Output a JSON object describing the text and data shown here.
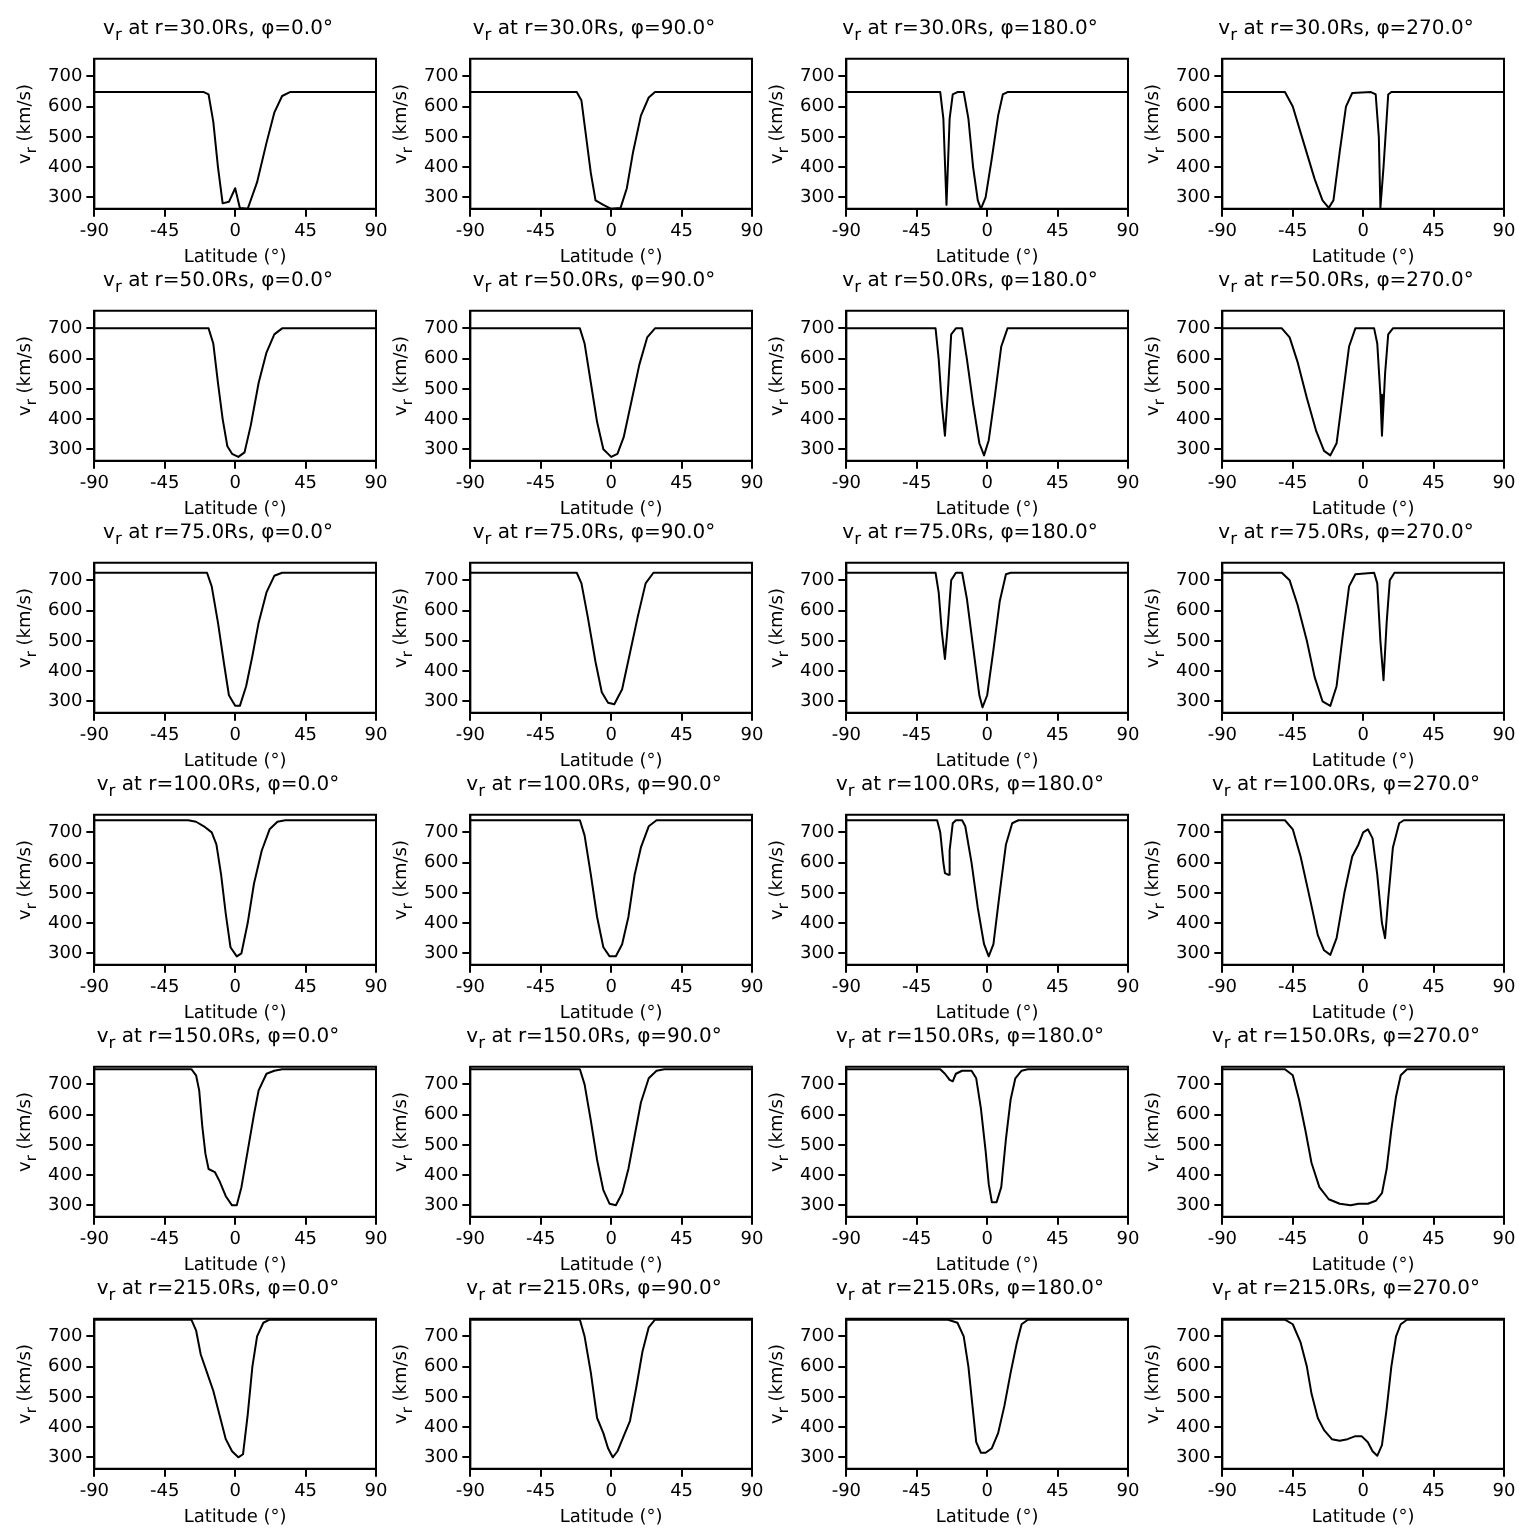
{
  "chart_data": [
    {
      "type": "line",
      "title": "v$_{r}$ at r=30.0Rs, φ=0.0°",
      "xlabel": "Latitude (°)",
      "ylabel": "v$_{r}$ (km/s)",
      "color": "#000000",
      "xlim": [
        -90,
        90
      ],
      "xticks": [
        -90,
        -45,
        0,
        45,
        90
      ],
      "ylim": [
        262,
        758
      ],
      "yticks": [
        300,
        400,
        500,
        600,
        700
      ],
      "x": [
        -90,
        -20,
        -17,
        -14,
        -11,
        -8,
        -4,
        0,
        3,
        8,
        14,
        20,
        25,
        30,
        35,
        90
      ],
      "values": [
        648,
        648,
        640,
        550,
        400,
        280,
        285,
        330,
        265,
        262,
        350,
        480,
        580,
        635,
        648,
        648
      ]
    },
    {
      "type": "line",
      "title": "v$_{r}$ at r=30.0Rs, φ=90.0°",
      "xlabel": "Latitude (°)",
      "ylabel": "v$_{r}$ (km/s)",
      "color": "#000000",
      "xlim": [
        -90,
        90
      ],
      "xticks": [
        -90,
        -45,
        0,
        45,
        90
      ],
      "ylim": [
        262,
        758
      ],
      "yticks": [
        300,
        400,
        500,
        600,
        700
      ],
      "x": [
        -90,
        -22,
        -19,
        -16,
        -13,
        -10,
        -5,
        0,
        6,
        10,
        14,
        19,
        24,
        28,
        90
      ],
      "values": [
        648,
        648,
        620,
        500,
        380,
        290,
        275,
        262,
        265,
        330,
        450,
        570,
        630,
        648,
        648
      ]
    },
    {
      "type": "line",
      "title": "v$_{r}$ at r=30.0Rs, φ=180.0°",
      "xlabel": "Latitude (°)",
      "ylabel": "v$_{r}$ (km/s)",
      "color": "#000000",
      "xlim": [
        -90,
        90
      ],
      "xticks": [
        -90,
        -45,
        0,
        45,
        90
      ],
      "ylim": [
        262,
        758
      ],
      "yticks": [
        300,
        400,
        500,
        600,
        700
      ],
      "x": [
        -90,
        -30,
        -28,
        -26,
        -24,
        -22,
        -19,
        -15,
        -12,
        -9,
        -6,
        -4,
        -1,
        3,
        7,
        10,
        13,
        90
      ],
      "values": [
        648,
        648,
        560,
        275,
        560,
        640,
        648,
        648,
        560,
        400,
        290,
        262,
        300,
        430,
        570,
        640,
        648,
        648
      ]
    },
    {
      "type": "line",
      "title": "v$_{r}$ at r=30.0Rs, φ=270.0°",
      "xlabel": "Latitude (°)",
      "ylabel": "v$_{r}$ (km/s)",
      "color": "#000000",
      "xlim": [
        -90,
        90
      ],
      "xticks": [
        -90,
        -45,
        0,
        45,
        90
      ],
      "ylim": [
        262,
        758
      ],
      "yticks": [
        300,
        400,
        500,
        600,
        700
      ],
      "x": [
        -90,
        -50,
        -45,
        -38,
        -31,
        -26,
        -22,
        -19,
        -15,
        -11,
        -7,
        5,
        8,
        10,
        11,
        13,
        16,
        18,
        90
      ],
      "values": [
        648,
        648,
        600,
        480,
        360,
        290,
        265,
        290,
        450,
        600,
        645,
        648,
        640,
        500,
        265,
        400,
        640,
        648,
        648
      ]
    },
    {
      "type": "line",
      "title": "v$_{r}$ at r=50.0Rs, φ=0.0°",
      "xlabel": "Latitude (°)",
      "ylabel": "v$_{r}$ (km/s)",
      "color": "#000000",
      "xlim": [
        -90,
        90
      ],
      "xticks": [
        -90,
        -45,
        0,
        45,
        90
      ],
      "ylim": [
        262,
        758
      ],
      "yticks": [
        300,
        400,
        500,
        600,
        700
      ],
      "x": [
        -90,
        -17,
        -14,
        -11,
        -8,
        -5,
        -2,
        2,
        6,
        10,
        15,
        20,
        25,
        30,
        90
      ],
      "values": [
        700,
        700,
        650,
        520,
        400,
        310,
        285,
        275,
        290,
        380,
        520,
        620,
        680,
        700,
        700
      ]
    },
    {
      "type": "line",
      "title": "v$_{r}$ at r=50.0Rs, φ=90.0°",
      "xlabel": "Latitude (°)",
      "ylabel": "v$_{r}$ (km/s)",
      "color": "#000000",
      "xlim": [
        -90,
        90
      ],
      "xticks": [
        -90,
        -45,
        0,
        45,
        90
      ],
      "ylim": [
        262,
        758
      ],
      "yticks": [
        300,
        400,
        500,
        600,
        700
      ],
      "x": [
        -90,
        -20,
        -17,
        -13,
        -9,
        -5,
        0,
        4,
        8,
        13,
        18,
        23,
        28,
        90
      ],
      "values": [
        700,
        700,
        650,
        520,
        390,
        300,
        275,
        285,
        340,
        460,
        580,
        670,
        700,
        700
      ]
    },
    {
      "type": "line",
      "title": "v$_{r}$ at r=50.0Rs, φ=180.0°",
      "xlabel": "Latitude (°)",
      "ylabel": "v$_{r}$ (km/s)",
      "color": "#000000",
      "xlim": [
        -90,
        90
      ],
      "xticks": [
        -90,
        -45,
        0,
        45,
        90
      ],
      "ylim": [
        262,
        758
      ],
      "yticks": [
        300,
        400,
        500,
        600,
        700
      ],
      "x": [
        -90,
        -33,
        -31,
        -29,
        -27,
        -25,
        -23,
        -20,
        -16,
        -13,
        -9,
        -5,
        -2,
        1,
        5,
        9,
        13,
        90
      ],
      "values": [
        700,
        700,
        600,
        450,
        345,
        500,
        680,
        700,
        700,
        600,
        450,
        320,
        280,
        330,
        480,
        640,
        700,
        700
      ]
    },
    {
      "type": "line",
      "title": "v$_{r}$ at r=50.0Rs, φ=270.0°",
      "xlabel": "Latitude (°)",
      "ylabel": "v$_{r}$ (km/s)",
      "color": "#000000",
      "xlim": [
        -90,
        90
      ],
      "xticks": [
        -90,
        -45,
        0,
        45,
        90
      ],
      "ylim": [
        262,
        758
      ],
      "yticks": [
        300,
        400,
        500,
        600,
        700
      ],
      "x": [
        -90,
        -52,
        -47,
        -42,
        -36,
        -30,
        -25,
        -21,
        -17,
        -13,
        -9,
        -5,
        7,
        9,
        11,
        12,
        14,
        16,
        19,
        90
      ],
      "values": [
        700,
        700,
        670,
        590,
        470,
        360,
        295,
        280,
        320,
        480,
        640,
        700,
        700,
        650,
        480,
        345,
        550,
        680,
        700,
        700
      ]
    },
    {
      "type": "line",
      "title": "v$_{r}$ at r=75.0Rs, φ=0.0°",
      "xlabel": "Latitude (°)",
      "ylabel": "v$_{r}$ (km/s)",
      "color": "#000000",
      "xlim": [
        -90,
        90
      ],
      "xticks": [
        -90,
        -45,
        0,
        45,
        90
      ],
      "ylim": [
        262,
        758
      ],
      "yticks": [
        300,
        400,
        500,
        600,
        700
      ],
      "x": [
        -90,
        -18,
        -15,
        -11,
        -7,
        -4,
        0,
        3,
        7,
        11,
        15,
        20,
        25,
        30,
        90
      ],
      "values": [
        725,
        725,
        680,
        560,
        420,
        320,
        285,
        285,
        350,
        450,
        560,
        660,
        715,
        725,
        725
      ]
    },
    {
      "type": "line",
      "title": "v$_{r}$ at r=75.0Rs, φ=90.0°",
      "xlabel": "Latitude (°)",
      "ylabel": "v$_{r}$ (km/s)",
      "color": "#000000",
      "xlim": [
        -90,
        90
      ],
      "xticks": [
        -90,
        -45,
        0,
        45,
        90
      ],
      "ylim": [
        262,
        758
      ],
      "yticks": [
        300,
        400,
        500,
        600,
        700
      ],
      "x": [
        -90,
        -22,
        -19,
        -15,
        -10,
        -6,
        -2,
        2,
        7,
        12,
        17,
        22,
        27,
        90
      ],
      "values": [
        725,
        725,
        690,
        580,
        430,
        330,
        295,
        290,
        340,
        460,
        580,
        690,
        725,
        725
      ]
    },
    {
      "type": "line",
      "title": "v$_{r}$ at r=75.0Rs, φ=180.0°",
      "xlabel": "Latitude (°)",
      "ylabel": "v$_{r}$ (km/s)",
      "color": "#000000",
      "xlim": [
        -90,
        90
      ],
      "xticks": [
        -90,
        -45,
        0,
        45,
        90
      ],
      "ylim": [
        262,
        758
      ],
      "yticks": [
        300,
        400,
        500,
        600,
        700
      ],
      "x": [
        -90,
        -33,
        -31,
        -29,
        -27,
        -25,
        -23,
        -20,
        -16,
        -13,
        -9,
        -5,
        -3,
        0,
        4,
        8,
        12,
        15,
        90
      ],
      "values": [
        725,
        725,
        660,
        530,
        440,
        560,
        700,
        725,
        725,
        640,
        480,
        320,
        280,
        320,
        470,
        630,
        720,
        725,
        725
      ]
    },
    {
      "type": "line",
      "title": "v$_{r}$ at r=75.0Rs, φ=270.0°",
      "xlabel": "Latitude (°)",
      "ylabel": "v$_{r}$ (km/s)",
      "color": "#000000",
      "xlim": [
        -90,
        90
      ],
      "xticks": [
        -90,
        -45,
        0,
        45,
        90
      ],
      "ylim": [
        262,
        758
      ],
      "yticks": [
        300,
        400,
        500,
        600,
        700
      ],
      "x": [
        -90,
        -52,
        -47,
        -42,
        -36,
        -31,
        -26,
        -21,
        -17,
        -13,
        -9,
        -5,
        7,
        9,
        11,
        13,
        15,
        17,
        20,
        90
      ],
      "values": [
        725,
        725,
        700,
        620,
        500,
        380,
        300,
        285,
        350,
        520,
        680,
        720,
        725,
        690,
        500,
        370,
        560,
        700,
        725,
        725
      ]
    },
    {
      "type": "line",
      "title": "v$_{r}$ at r=100.0Rs, φ=0.0°",
      "xlabel": "Latitude (°)",
      "ylabel": "v$_{r}$ (km/s)",
      "color": "#000000",
      "xlim": [
        -90,
        90
      ],
      "xticks": [
        -90,
        -45,
        0,
        45,
        90
      ],
      "ylim": [
        262,
        758
      ],
      "yticks": [
        300,
        400,
        500,
        600,
        700
      ],
      "x": [
        -90,
        -30,
        -25,
        -20,
        -15,
        -12,
        -9,
        -6,
        -3,
        1,
        4,
        8,
        12,
        17,
        22,
        27,
        32,
        90
      ],
      "values": [
        740,
        740,
        735,
        720,
        700,
        660,
        560,
        430,
        320,
        290,
        300,
        400,
        530,
        640,
        710,
        735,
        740,
        740
      ]
    },
    {
      "type": "line",
      "title": "v$_{r}$ at r=100.0Rs, φ=90.0°",
      "xlabel": "Latitude (°)",
      "ylabel": "v$_{r}$ (km/s)",
      "color": "#000000",
      "xlim": [
        -90,
        90
      ],
      "xticks": [
        -90,
        -45,
        0,
        45,
        90
      ],
      "ylim": [
        262,
        758
      ],
      "yticks": [
        300,
        400,
        500,
        600,
        700
      ],
      "x": [
        -90,
        -20,
        -17,
        -13,
        -9,
        -5,
        -1,
        3,
        7,
        11,
        15,
        19,
        24,
        29,
        90
      ],
      "values": [
        740,
        740,
        690,
        560,
        420,
        320,
        290,
        290,
        330,
        420,
        560,
        650,
        720,
        740,
        740
      ]
    },
    {
      "type": "line",
      "title": "v$_{r}$ at r=100.0Rs, φ=180.0°",
      "xlabel": "Latitude (°)",
      "ylabel": "v$_{r}$ (km/s)",
      "color": "#000000",
      "xlim": [
        -90,
        90
      ],
      "xticks": [
        -90,
        -45,
        0,
        45,
        90
      ],
      "ylim": [
        262,
        758
      ],
      "yticks": [
        300,
        400,
        500,
        600,
        700
      ],
      "x": [
        -90,
        -32,
        -30,
        -28,
        -27,
        -25,
        -24,
        -22,
        -20,
        -16,
        -14,
        -10,
        -6,
        -2,
        1,
        4,
        8,
        12,
        16,
        20,
        90
      ],
      "values": [
        740,
        740,
        700,
        600,
        565,
        560,
        640,
        730,
        740,
        740,
        720,
        600,
        450,
        330,
        290,
        330,
        500,
        660,
        730,
        740,
        740
      ]
    },
    {
      "type": "line",
      "title": "v$_{r}$ at r=100.0Rs, φ=270.0°",
      "xlabel": "Latitude (°)",
      "ylabel": "v$_{r}$ (km/s)",
      "color": "#000000",
      "xlim": [
        -90,
        90
      ],
      "xticks": [
        -90,
        -45,
        0,
        45,
        90
      ],
      "ylim": [
        262,
        758
      ],
      "yticks": [
        300,
        400,
        500,
        600,
        700
      ],
      "x": [
        -90,
        -50,
        -45,
        -40,
        -34,
        -29,
        -25,
        -21,
        -17,
        -12,
        -7,
        -3,
        0,
        3,
        6,
        9,
        12,
        14,
        16,
        19,
        23,
        26,
        90
      ],
      "values": [
        740,
        740,
        710,
        620,
        480,
        360,
        310,
        295,
        350,
        500,
        620,
        660,
        700,
        710,
        680,
        560,
        400,
        350,
        480,
        650,
        730,
        740,
        740
      ]
    },
    {
      "type": "line",
      "title": "v$_{r}$ at r=150.0Rs, φ=0.0°",
      "xlabel": "Latitude (°)",
      "ylabel": "v$_{r}$ (km/s)",
      "color": "#000000",
      "xlim": [
        -90,
        90
      ],
      "xticks": [
        -90,
        -45,
        0,
        45,
        90
      ],
      "ylim": [
        262,
        758
      ],
      "yticks": [
        300,
        400,
        500,
        600,
        700
      ],
      "x": [
        -90,
        -28,
        -25,
        -23,
        -21,
        -19,
        -17,
        -13,
        -10,
        -6,
        -2,
        1,
        4,
        8,
        12,
        15,
        20,
        25,
        30,
        90
      ],
      "values": [
        750,
        750,
        730,
        680,
        560,
        470,
        420,
        410,
        380,
        330,
        300,
        300,
        360,
        480,
        600,
        680,
        735,
        745,
        750,
        750
      ]
    },
    {
      "type": "line",
      "title": "v$_{r}$ at r=150.0Rs, φ=90.0°",
      "xlabel": "Latitude (°)",
      "ylabel": "v$_{r}$ (km/s)",
      "color": "#000000",
      "xlim": [
        -90,
        90
      ],
      "xticks": [
        -90,
        -45,
        0,
        45,
        90
      ],
      "ylim": [
        262,
        758
      ],
      "yticks": [
        300,
        400,
        500,
        600,
        700
      ],
      "x": [
        -90,
        -20,
        -17,
        -13,
        -9,
        -5,
        -1,
        3,
        7,
        11,
        15,
        19,
        24,
        29,
        34,
        90
      ],
      "values": [
        750,
        750,
        700,
        580,
        450,
        350,
        305,
        300,
        340,
        420,
        530,
        640,
        720,
        745,
        750,
        750
      ]
    },
    {
      "type": "line",
      "title": "v$_{r}$ at r=150.0Rs, φ=180.0°",
      "xlabel": "Latitude (°)",
      "ylabel": "v$_{r}$ (km/s)",
      "color": "#000000",
      "xlim": [
        -90,
        90
      ],
      "xticks": [
        -90,
        -45,
        0,
        45,
        90
      ],
      "ylim": [
        262,
        758
      ],
      "yticks": [
        300,
        400,
        500,
        600,
        700
      ],
      "x": [
        -90,
        -30,
        -27,
        -24,
        -22,
        -20,
        -16,
        -10,
        -7,
        -4,
        -1,
        1,
        3,
        6,
        9,
        12,
        15,
        18,
        22,
        26,
        90
      ],
      "values": [
        750,
        750,
        735,
        715,
        710,
        735,
        745,
        745,
        720,
        620,
        480,
        370,
        310,
        310,
        360,
        520,
        650,
        720,
        745,
        750,
        750
      ]
    },
    {
      "type": "line",
      "title": "v$_{r}$ at r=150.0Rs, φ=270.0°",
      "xlabel": "Latitude (°)",
      "ylabel": "v$_{r}$ (km/s)",
      "color": "#000000",
      "xlim": [
        -90,
        90
      ],
      "xticks": [
        -90,
        -45,
        0,
        45,
        90
      ],
      "ylim": [
        262,
        758
      ],
      "yticks": [
        300,
        400,
        500,
        600,
        700
      ],
      "x": [
        -90,
        -50,
        -45,
        -41,
        -37,
        -33,
        -28,
        -22,
        -15,
        -8,
        -3,
        3,
        8,
        12,
        15,
        18,
        21,
        24,
        28,
        90
      ],
      "values": [
        750,
        750,
        730,
        650,
        550,
        440,
        360,
        320,
        305,
        300,
        305,
        305,
        315,
        340,
        420,
        550,
        660,
        730,
        750,
        750
      ]
    },
    {
      "type": "line",
      "title": "v$_{r}$ at r=215.0Rs, φ=0.0°",
      "xlabel": "Latitude (°)",
      "ylabel": "v$_{r}$ (km/s)",
      "color": "#000000",
      "xlim": [
        -90,
        90
      ],
      "xticks": [
        -90,
        -45,
        0,
        45,
        90
      ],
      "ylim": [
        262,
        758
      ],
      "yticks": [
        300,
        400,
        500,
        600,
        700
      ],
      "x": [
        -90,
        -28,
        -25,
        -22,
        -18,
        -14,
        -10,
        -6,
        -2,
        2,
        5,
        8,
        11,
        14,
        18,
        22,
        90
      ],
      "values": [
        755,
        755,
        720,
        640,
        580,
        520,
        440,
        360,
        320,
        300,
        310,
        440,
        600,
        700,
        745,
        755,
        755
      ]
    },
    {
      "type": "line",
      "title": "v$_{r}$ at r=215.0Rs, φ=90.0°",
      "xlabel": "Latitude (°)",
      "ylabel": "v$_{r}$ (km/s)",
      "color": "#000000",
      "xlim": [
        -90,
        90
      ],
      "xticks": [
        -90,
        -45,
        0,
        45,
        90
      ],
      "ylim": [
        262,
        758
      ],
      "yticks": [
        300,
        400,
        500,
        600,
        700
      ],
      "x": [
        -90,
        -20,
        -17,
        -13,
        -9,
        -5,
        -2,
        1,
        4,
        8,
        12,
        16,
        20,
        24,
        28,
        90
      ],
      "values": [
        755,
        755,
        700,
        580,
        430,
        380,
        330,
        300,
        320,
        370,
        420,
        530,
        650,
        730,
        755,
        755
      ]
    },
    {
      "type": "line",
      "title": "v$_{r}$ at r=215.0Rs, φ=180.0°",
      "xlabel": "Latitude (°)",
      "ylabel": "v$_{r}$ (km/s)",
      "color": "#000000",
      "xlim": [
        -90,
        90
      ],
      "xticks": [
        -90,
        -45,
        0,
        45,
        90
      ],
      "ylim": [
        262,
        758
      ],
      "yticks": [
        300,
        400,
        500,
        600,
        700
      ],
      "x": [
        -90,
        -25,
        -19,
        -15,
        -12,
        -9,
        -7,
        -4,
        -1,
        3,
        7,
        11,
        15,
        19,
        22,
        26,
        90
      ],
      "values": [
        755,
        755,
        745,
        700,
        600,
        450,
        350,
        315,
        315,
        330,
        380,
        470,
        580,
        680,
        740,
        755,
        755
      ]
    },
    {
      "type": "line",
      "title": "v$_{r}$ at r=215.0Rs, φ=270.0°",
      "xlabel": "Latitude (°)",
      "ylabel": "v$_{r}$ (km/s)",
      "color": "#000000",
      "xlim": [
        -90,
        90
      ],
      "xticks": [
        -90,
        -45,
        0,
        45,
        90
      ],
      "ylim": [
        262,
        758
      ],
      "yticks": [
        300,
        400,
        500,
        600,
        700
      ],
      "x": [
        -90,
        -50,
        -45,
        -40,
        -36,
        -33,
        -29,
        -25,
        -20,
        -15,
        -10,
        -5,
        -1,
        3,
        6,
        9,
        12,
        15,
        18,
        21,
        24,
        28,
        90
      ],
      "values": [
        755,
        755,
        740,
        680,
        600,
        510,
        430,
        390,
        360,
        355,
        360,
        370,
        370,
        350,
        320,
        305,
        340,
        460,
        600,
        700,
        740,
        755,
        755
      ]
    }
  ]
}
